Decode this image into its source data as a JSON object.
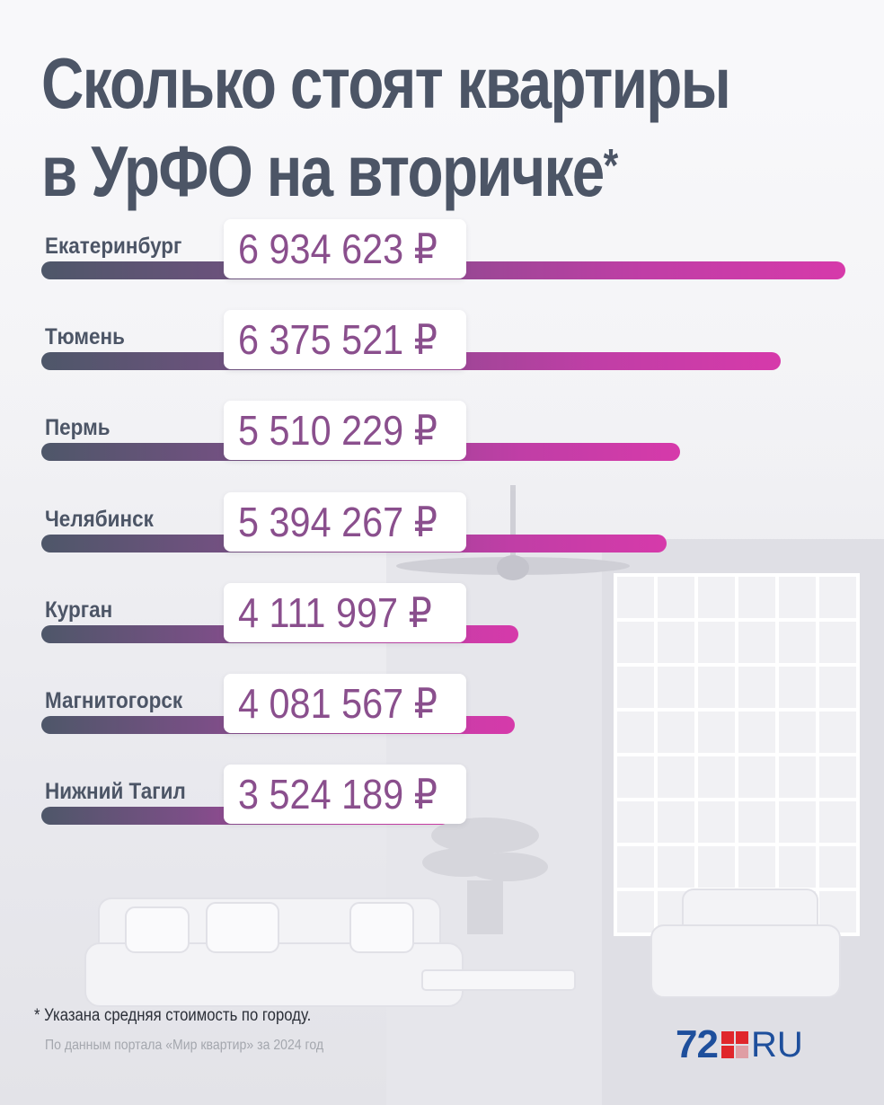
{
  "title": {
    "line1": "Сколько стоят квартиры",
    "line2": "в УрФО на вторичке",
    "star": "*"
  },
  "chart_data": {
    "type": "bar",
    "orientation": "horizontal",
    "title": "Сколько стоят квартиры в УрФО на вторичке*",
    "categories": [
      "Екатеринбург",
      "Тюмень",
      "Пермь",
      "Челябинск",
      "Курган",
      "Магнитогорск",
      "Нижний Тагил"
    ],
    "values": [
      6934623,
      6375521,
      5510229,
      5394267,
      4111997,
      4081567,
      3524189
    ],
    "value_labels": [
      "6 934 623 ₽",
      "6 375 521 ₽",
      "5 510 229 ₽",
      "5 394 267 ₽",
      "4 111 997 ₽",
      "4 081 567 ₽",
      "3 524 189 ₽"
    ],
    "xlim": [
      0,
      6934623
    ],
    "grid": false,
    "bar_gradient": [
      "#4e5769",
      "#7a4f86",
      "#c03ea6",
      "#d63aaa"
    ]
  },
  "footnote": "* Указана средняя стоимость по городу.",
  "source": "По данным портала «Мир квартир» за 2024 год",
  "logo": {
    "number": "72",
    "suffix": "RU"
  },
  "colors": {
    "title": "#4c5566",
    "value_text": "#8a4f8d",
    "logo_blue": "#1e4f9c",
    "logo_red": "#e0262b"
  }
}
